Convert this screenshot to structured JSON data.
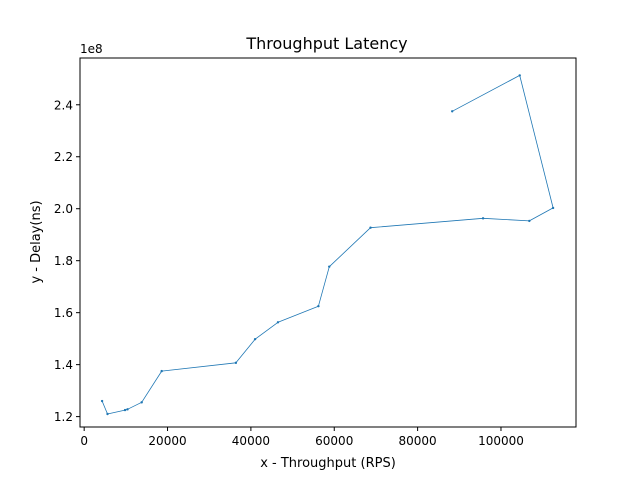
{
  "chart_data": {
    "type": "line",
    "title": "Throughput Latency",
    "xlabel": "x - Throughput (RPS)",
    "ylabel": "y - Delay(ns)",
    "y_offset_label": "1e8",
    "y_scale_factor": 100000000,
    "xlim": [
      -1000,
      118000
    ],
    "ylim": [
      116000000,
      258000000
    ],
    "x_ticks": [
      0,
      20000,
      40000,
      60000,
      80000,
      100000
    ],
    "x_tick_labels": [
      "0",
      "20000",
      "40000",
      "60000",
      "80000",
      "100000"
    ],
    "y_ticks": [
      120000000,
      140000000,
      160000000,
      180000000,
      200000000,
      220000000,
      240000000
    ],
    "y_tick_labels": [
      "1.2",
      "1.4",
      "1.6",
      "1.8",
      "2.0",
      "2.2",
      "2.4"
    ],
    "grid": false,
    "series": [
      {
        "color": "#1f77b4",
        "points": [
          [
            4300,
            126000000
          ],
          [
            5600,
            121000000
          ],
          [
            9800,
            122500000
          ],
          [
            10400,
            122800000
          ],
          [
            13800,
            125500000
          ],
          [
            18600,
            137500000
          ],
          [
            36400,
            140700000
          ],
          [
            41000,
            149800000
          ],
          [
            46500,
            156300000
          ],
          [
            56200,
            162500000
          ],
          [
            58800,
            177700000
          ],
          [
            68700,
            192700000
          ],
          [
            95700,
            196300000
          ],
          [
            106800,
            195300000
          ],
          [
            112500,
            200300000
          ],
          [
            104500,
            251300000
          ],
          [
            88300,
            237500000
          ]
        ]
      }
    ]
  }
}
